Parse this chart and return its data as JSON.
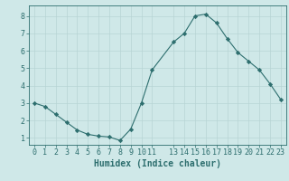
{
  "x": [
    0,
    1,
    2,
    3,
    4,
    5,
    6,
    7,
    8,
    9,
    10,
    11,
    13,
    14,
    15,
    16,
    17,
    18,
    19,
    20,
    21,
    22,
    23
  ],
  "y": [
    3.0,
    2.8,
    2.35,
    1.9,
    1.45,
    1.2,
    1.1,
    1.05,
    0.85,
    1.5,
    3.0,
    4.9,
    6.5,
    7.0,
    8.0,
    8.1,
    7.6,
    6.7,
    5.9,
    5.4,
    4.9,
    4.1,
    3.2
  ],
  "line_color": "#2d6e6e",
  "marker": "D",
  "marker_size": 2.2,
  "bg_color": "#cfe8e8",
  "grid_color": "#b8d4d4",
  "tick_color": "#2d6e6e",
  "xlabel": "Humidex (Indice chaleur)",
  "ylim": [
    0.6,
    8.6
  ],
  "xlim": [
    -0.5,
    23.5
  ],
  "yticks": [
    1,
    2,
    3,
    4,
    5,
    6,
    7,
    8
  ],
  "xticks": [
    0,
    1,
    2,
    3,
    4,
    5,
    6,
    7,
    8,
    9,
    10,
    11,
    13,
    14,
    15,
    16,
    17,
    18,
    19,
    20,
    21,
    22,
    23
  ],
  "xtick_labels": [
    "0",
    "1",
    "2",
    "3",
    "4",
    "5",
    "6",
    "7",
    "8",
    "9",
    "10",
    "11",
    "13",
    "14",
    "15",
    "16",
    "17",
    "18",
    "19",
    "20",
    "21",
    "22",
    "23"
  ],
  "label_fontsize": 7,
  "tick_fontsize": 6
}
